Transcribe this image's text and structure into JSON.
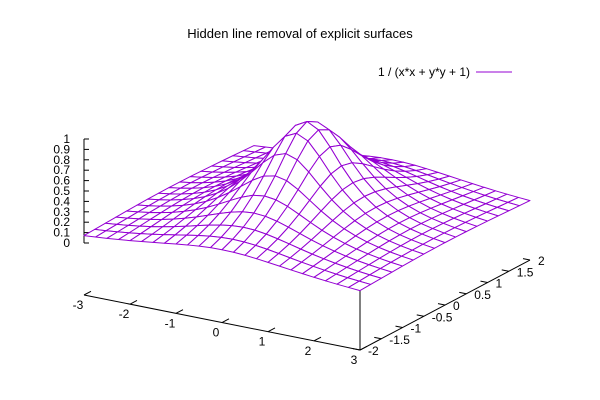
{
  "chart_data": {
    "type": "surface",
    "title": "Hidden line removal of explicit surfaces",
    "series": [
      {
        "name": "1 / (x*x + y*y + 1)",
        "color": "#9400d3",
        "function": "1 / (x*x + y*y + 1)"
      }
    ],
    "xlim": [
      -3,
      3
    ],
    "ylim": [
      -2,
      2
    ],
    "zlim": [
      0,
      1
    ],
    "x_samples": 25,
    "y_samples": 17,
    "x_ticks": [
      -3,
      -2,
      -1,
      0,
      1,
      2,
      3
    ],
    "x_tick_labels": [
      "-3",
      "-2",
      "-1",
      "0",
      "1",
      "2",
      "3"
    ],
    "y_ticks": [
      -2,
      -1.5,
      -1,
      -0.5,
      0,
      0.5,
      1,
      1.5,
      2
    ],
    "y_tick_labels": [
      "-2",
      "-1.5",
      "-1",
      "-0.5",
      "0",
      "0.5",
      "1",
      "1.5",
      "2"
    ],
    "z_ticks": [
      0,
      0.1,
      0.2,
      0.3,
      0.4,
      0.5,
      0.6,
      0.7,
      0.8,
      0.9,
      1
    ],
    "z_tick_labels": [
      "0",
      "0.1",
      "0.2",
      "0.3",
      "0.4",
      "0.5",
      "0.6",
      "0.7",
      "0.8",
      "0.9",
      "1"
    ],
    "hidden_line_removal": true,
    "legend_position": "top-right"
  }
}
